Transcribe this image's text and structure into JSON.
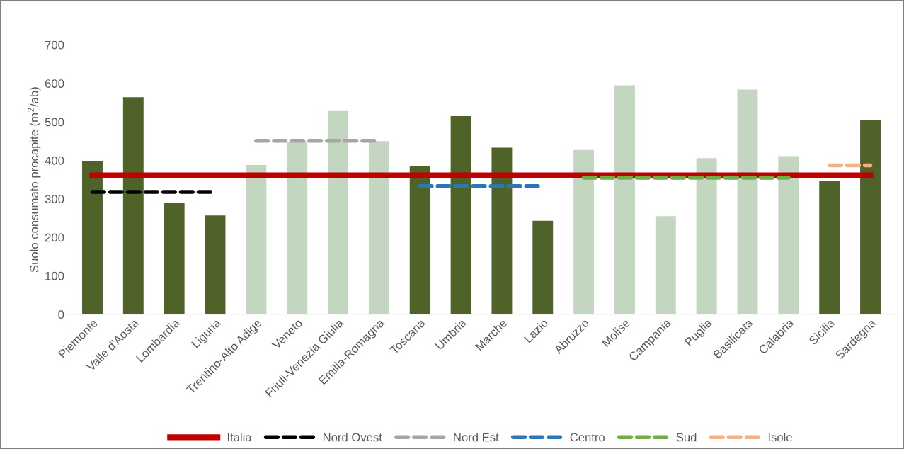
{
  "chart_data": {
    "type": "bar",
    "ylabel": "Suolo consumato procapite (m$^{2}$/ab)",
    "categories": [
      "Piemonte",
      "Valle d'Aosta",
      "Lombardia",
      "Liguria",
      "Trentino-Alto Adige",
      "Veneto",
      "Friuli-Venezia Giulia",
      "Emilia-Romagna",
      "Toscana",
      "Umbria",
      "Marche",
      "Lazio",
      "Abruzzo",
      "Molise",
      "Campania",
      "Puglia",
      "Basilicata",
      "Calabria",
      "Sicilia",
      "Sardegna"
    ],
    "series": [
      {
        "colors": [
          "#4f6228",
          "#4f6228",
          "#4f6228",
          "#4f6228",
          "#c3d6c0",
          "#c3d6c0",
          "#c3d6c0",
          "#c3d6c0",
          "#4f6228",
          "#4f6228",
          "#4f6228",
          "#4f6228",
          "#c3d6c0",
          "#c3d6c0",
          "#c3d6c0",
          "#c3d6c0",
          "#c3d6c0",
          "#c3d6c0",
          "#4f6228",
          "#4f6228"
        ],
        "values": [
          397,
          564,
          289,
          257,
          388,
          447,
          528,
          450,
          386,
          515,
          433,
          243,
          427,
          595,
          255,
          406,
          584,
          411,
          347,
          504
        ]
      },
      {
        "type": "line",
        "name": "Italia",
        "color": "#c00000",
        "line_style": "solid",
        "values": [
          361,
          361,
          361,
          361,
          361,
          361,
          361,
          361,
          361,
          361,
          361,
          361,
          361,
          361,
          361,
          361,
          361,
          361,
          361,
          361
        ]
      },
      {
        "type": "line",
        "name": "Nord Ovest",
        "color": "#000000",
        "line_style": "dashed",
        "values": [
          318,
          318,
          318,
          318,
          null,
          null,
          null,
          null,
          null,
          null,
          null,
          null,
          null,
          null,
          null,
          null,
          null,
          null,
          null,
          null
        ]
      },
      {
        "type": "line",
        "name": "Nord Est",
        "color": "#a6a6a6",
        "line_style": "dashed",
        "values": [
          null,
          null,
          null,
          null,
          451,
          451,
          451,
          451,
          null,
          null,
          null,
          null,
          null,
          null,
          null,
          null,
          null,
          null,
          null,
          null
        ]
      },
      {
        "type": "line",
        "name": "Centro",
        "color": "#2e75b6",
        "line_style": "dashed",
        "values": [
          null,
          null,
          null,
          null,
          null,
          null,
          null,
          null,
          333,
          333,
          333,
          333,
          null,
          null,
          null,
          null,
          null,
          null,
          null,
          null
        ]
      },
      {
        "type": "line",
        "name": "Sud",
        "color": "#70ad47",
        "line_style": "dashed",
        "values": [
          null,
          null,
          null,
          null,
          null,
          null,
          null,
          null,
          null,
          null,
          null,
          null,
          355,
          355,
          355,
          355,
          355,
          355,
          null,
          null
        ]
      },
      {
        "type": "line",
        "name": "Isole",
        "color": "#f4b183",
        "line_style": "dashed",
        "values": [
          null,
          null,
          null,
          null,
          null,
          null,
          null,
          null,
          null,
          null,
          null,
          null,
          null,
          null,
          null,
          null,
          null,
          null,
          387,
          387
        ]
      }
    ],
    "ylim": [
      0,
      700
    ],
    "yticks": [
      0,
      100,
      200,
      300,
      400,
      500,
      600,
      700
    ],
    "grid": false,
    "legend": "bottom"
  }
}
